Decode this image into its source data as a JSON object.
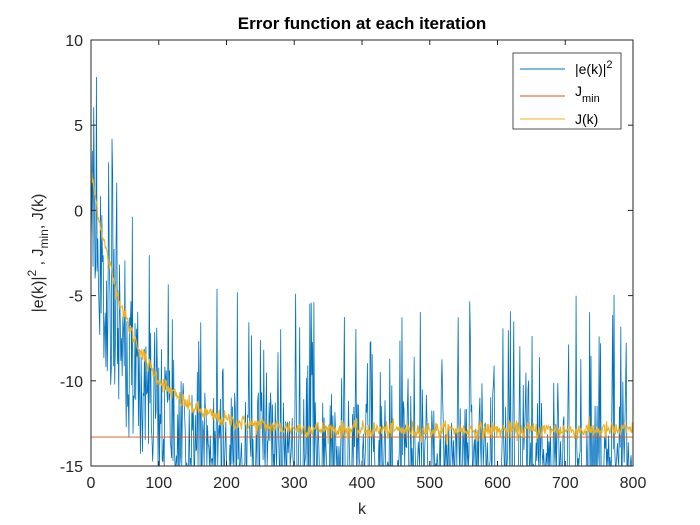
{
  "chart_data": {
    "type": "line",
    "title": "Error function at each iteration",
    "xlabel": "k",
    "ylabel_parts": {
      "e_base": "|e(k)|",
      "e_sup": "2",
      "sep1": " , J",
      "jmin_sub": "min",
      "sep2": ", J(k)"
    },
    "xlim": [
      0,
      800
    ],
    "ylim": [
      -15,
      10
    ],
    "xticks": [
      "0",
      "100",
      "200",
      "300",
      "400",
      "500",
      "600",
      "700",
      "800"
    ],
    "yticks": [
      "10",
      "5",
      "0",
      "-5",
      "-10",
      "-15"
    ],
    "grid": false,
    "legend_placement": "top-right",
    "series": [
      {
        "name": "|e(k)|2",
        "legend_base": "|e(k)|",
        "legend_sup": "2",
        "color": "#0072BD",
        "behavior": "noisy, decays from about 2 toward -13 with large spikes",
        "sample_points": [
          [
            0,
            2.5
          ],
          [
            8,
            5.1
          ],
          [
            20,
            3.5
          ],
          [
            50,
            0.0
          ],
          [
            100,
            -5.5
          ],
          [
            150,
            -9.0
          ],
          [
            200,
            -11.0
          ],
          [
            260,
            -4.5
          ],
          [
            300,
            -9.5
          ],
          [
            400,
            -8.0
          ],
          [
            460,
            -6.2
          ],
          [
            520,
            -6.2
          ],
          [
            600,
            -7.0
          ],
          [
            700,
            -7.2
          ],
          [
            800,
            -10.0
          ]
        ]
      },
      {
        "name": "Jmin",
        "legend_base": "J",
        "legend_sub": "min",
        "color": "#D95319",
        "values_constant": -13.3
      },
      {
        "name": "J(k)",
        "legend_base": "J(k)",
        "color": "#EDB120",
        "behavior": "smooth exponential decay from about 2.2 to about -12.9",
        "sample_points": [
          [
            0,
            2.2
          ],
          [
            50,
            -2.8
          ],
          [
            100,
            -7.0
          ],
          [
            150,
            -10.4
          ],
          [
            200,
            -12.2
          ],
          [
            300,
            -12.9
          ],
          [
            400,
            -12.9
          ],
          [
            500,
            -12.9
          ],
          [
            600,
            -12.9
          ],
          [
            700,
            -12.9
          ],
          [
            800,
            -12.9
          ]
        ]
      }
    ]
  }
}
